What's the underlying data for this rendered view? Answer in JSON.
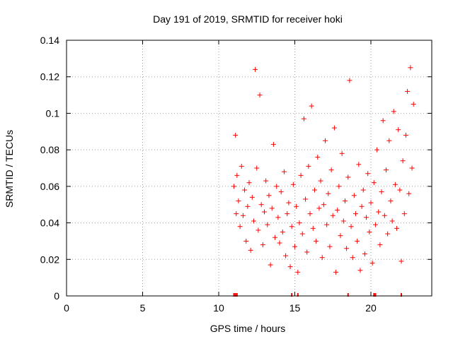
{
  "chart_data": {
    "type": "scatter",
    "title": "Day 191 of 2019, SRMTID for receiver hoki",
    "xlabel": "GPS time / hours",
    "ylabel": "SRMTID / TECUs",
    "xlim": [
      0,
      24
    ],
    "ylim": [
      0,
      0.14
    ],
    "xticks": [
      0,
      5,
      10,
      15,
      20
    ],
    "yticks": [
      0,
      0.02,
      0.04,
      0.06,
      0.08,
      0.1,
      0.12,
      0.14
    ],
    "ytick_labels": [
      "0",
      "0.02",
      "0.04",
      "0.06",
      "0.08",
      "0.1",
      "0.12",
      "0.14"
    ],
    "grid": true,
    "marker": "+",
    "color": "#ff0000",
    "series": [
      {
        "x": [
          11.0,
          11.1,
          11.15,
          11.2,
          11.3,
          11.4,
          11.5,
          11.6,
          11.7,
          11.8,
          11.9,
          12.0,
          12.1,
          12.2,
          12.3,
          12.4,
          12.5,
          12.6,
          12.7,
          12.8,
          12.9,
          13.0,
          13.1,
          13.2,
          13.3,
          13.4,
          13.5,
          13.6,
          13.7,
          13.8,
          13.9,
          14.0,
          14.1,
          14.2,
          14.3,
          14.4,
          14.5,
          14.6,
          14.7,
          14.8,
          14.9,
          15.0,
          15.1,
          15.2,
          15.3,
          15.4,
          15.5,
          15.6,
          15.7,
          15.8,
          15.9,
          16.0,
          16.1,
          16.2,
          16.3,
          16.4,
          16.5,
          16.6,
          16.7,
          16.8,
          16.9,
          17.0,
          17.1,
          17.2,
          17.3,
          17.4,
          17.5,
          17.6,
          17.7,
          17.8,
          17.9,
          18.0,
          18.1,
          18.2,
          18.3,
          18.4,
          18.5,
          18.6,
          18.7,
          18.8,
          18.9,
          19.0,
          19.1,
          19.2,
          19.3,
          19.4,
          19.5,
          19.6,
          19.7,
          19.8,
          19.9,
          20.0,
          20.1,
          20.2,
          20.3,
          20.4,
          20.5,
          20.6,
          20.7,
          20.8,
          20.9,
          21.0,
          21.1,
          21.2,
          21.3,
          21.4,
          21.5,
          21.6,
          21.7,
          21.8,
          21.9,
          22.0,
          22.1,
          22.2,
          22.3,
          22.4,
          22.5,
          22.6,
          22.7,
          22.8
        ],
        "y": [
          0.06,
          0.088,
          0.045,
          0.066,
          0.052,
          0.038,
          0.071,
          0.044,
          0.058,
          0.03,
          0.049,
          0.062,
          0.025,
          0.054,
          0.041,
          0.124,
          0.07,
          0.036,
          0.11,
          0.05,
          0.028,
          0.046,
          0.063,
          0.039,
          0.055,
          0.017,
          0.048,
          0.083,
          0.032,
          0.06,
          0.043,
          0.029,
          0.057,
          0.035,
          0.068,
          0.022,
          0.045,
          0.051,
          0.016,
          0.038,
          0.061,
          0.027,
          0.049,
          0.013,
          0.04,
          0.066,
          0.034,
          0.097,
          0.053,
          0.024,
          0.071,
          0.045,
          0.104,
          0.037,
          0.058,
          0.03,
          0.076,
          0.048,
          0.063,
          0.021,
          0.05,
          0.085,
          0.039,
          0.056,
          0.027,
          0.069,
          0.044,
          0.092,
          0.013,
          0.047,
          0.06,
          0.033,
          0.078,
          0.041,
          0.052,
          0.026,
          0.065,
          0.118,
          0.038,
          0.021,
          0.055,
          0.045,
          0.03,
          0.072,
          0.014,
          0.049,
          0.058,
          0.023,
          0.043,
          0.067,
          0.035,
          0.051,
          0.018,
          0.062,
          0.039,
          0.08,
          0.046,
          0.028,
          0.057,
          0.096,
          0.044,
          0.069,
          0.034,
          0.085,
          0.052,
          0.041,
          0.101,
          0.061,
          0.037,
          0.091,
          0.058,
          0.019,
          0.074,
          0.045,
          0.088,
          0.112,
          0.056,
          0.125,
          0.07,
          0.105
        ]
      }
    ],
    "baseline_marks_x": [
      11.0,
      11.1,
      11.2,
      14.8,
      15.2,
      18.5,
      20.2,
      20.3,
      22.0
    ]
  }
}
